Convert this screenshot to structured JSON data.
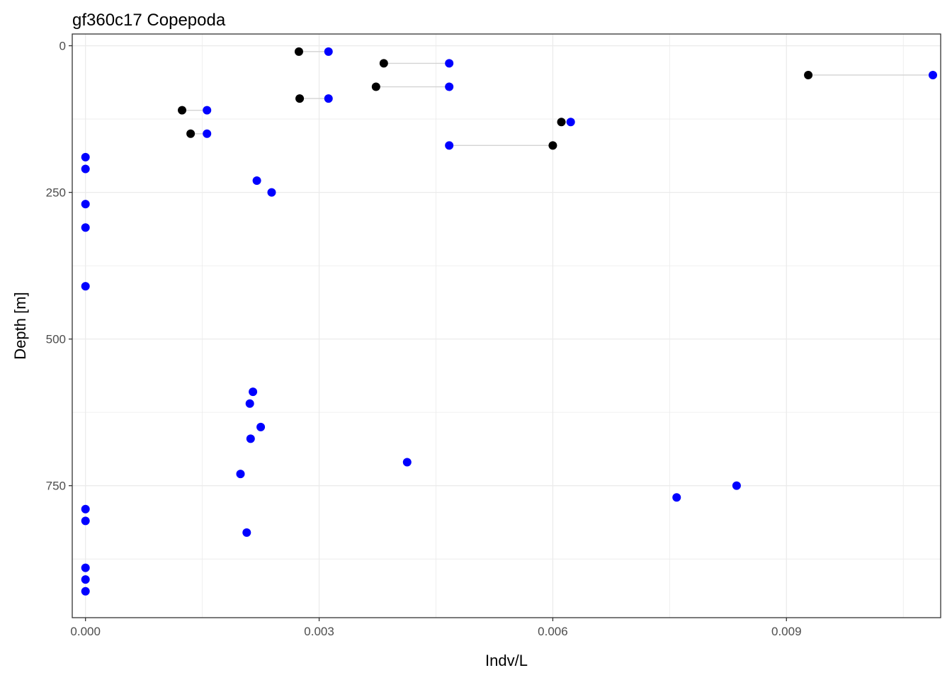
{
  "chart_data": {
    "type": "scatter",
    "title": "gf360c17 Copepoda",
    "xlabel": "Indv/L",
    "ylabel": "Depth [m]",
    "xlim": [
      -0.00017,
      0.01098
    ],
    "ylim": [
      -20,
      975
    ],
    "y_reversed": true,
    "x_ticks": [
      0.0,
      0.003,
      0.006,
      0.009
    ],
    "x_tick_labels": [
      "0.000",
      "0.003",
      "0.006",
      "0.009"
    ],
    "y_ticks": [
      0,
      250,
      500,
      750
    ],
    "y_tick_labels": [
      "0",
      "250",
      "500",
      "750"
    ],
    "grid": true,
    "legend": "none",
    "colors": {
      "black_points": "#000000",
      "blue_points": "#0000ff",
      "segments": "#d3d3d3",
      "grid": "#ebebeb",
      "panel_border": "#333333"
    },
    "segments": [
      {
        "depth": 10,
        "x1": 0.00274,
        "x2": 0.00312
      },
      {
        "depth": 30,
        "x1": 0.00383,
        "x2": 0.00467
      },
      {
        "depth": 50,
        "x1": 0.00928,
        "x2": 0.01088
      },
      {
        "depth": 70,
        "x1": 0.00373,
        "x2": 0.00467
      },
      {
        "depth": 90,
        "x1": 0.00275,
        "x2": 0.00312
      },
      {
        "depth": 110,
        "x1": 0.00124,
        "x2": 0.00156
      },
      {
        "depth": 130,
        "x1": 0.00611,
        "x2": 0.00623
      },
      {
        "depth": 150,
        "x1": 0.00135,
        "x2": 0.00156
      },
      {
        "depth": 170,
        "x1": 0.00467,
        "x2": 0.006
      }
    ],
    "series": [
      {
        "color": "#000000",
        "points": [
          {
            "x": 0.00274,
            "y": 10
          },
          {
            "x": 0.00383,
            "y": 30
          },
          {
            "x": 0.00928,
            "y": 50
          },
          {
            "x": 0.00373,
            "y": 70
          },
          {
            "x": 0.00275,
            "y": 90
          },
          {
            "x": 0.00124,
            "y": 110
          },
          {
            "x": 0.00611,
            "y": 130
          },
          {
            "x": 0.00135,
            "y": 150
          },
          {
            "x": 0.006,
            "y": 170
          }
        ]
      },
      {
        "color": "#0000ff",
        "points": [
          {
            "x": 0.00312,
            "y": 10
          },
          {
            "x": 0.00467,
            "y": 30
          },
          {
            "x": 0.01088,
            "y": 50
          },
          {
            "x": 0.00467,
            "y": 70
          },
          {
            "x": 0.00312,
            "y": 90
          },
          {
            "x": 0.00156,
            "y": 110
          },
          {
            "x": 0.00623,
            "y": 130
          },
          {
            "x": 0.00156,
            "y": 150
          },
          {
            "x": 0.00467,
            "y": 170
          },
          {
            "x": 0.0,
            "y": 190
          },
          {
            "x": 0.0,
            "y": 210
          },
          {
            "x": 0.0022,
            "y": 230
          },
          {
            "x": 0.00239,
            "y": 250
          },
          {
            "x": 0.0,
            "y": 270
          },
          {
            "x": 0.0,
            "y": 310
          },
          {
            "x": 0.0,
            "y": 410
          },
          {
            "x": 0.00215,
            "y": 590
          },
          {
            "x": 0.00211,
            "y": 610
          },
          {
            "x": 0.00225,
            "y": 650
          },
          {
            "x": 0.00212,
            "y": 670
          },
          {
            "x": 0.00413,
            "y": 710
          },
          {
            "x": 0.00199,
            "y": 730
          },
          {
            "x": 0.00836,
            "y": 750
          },
          {
            "x": 0.00759,
            "y": 770
          },
          {
            "x": 0.0,
            "y": 790
          },
          {
            "x": 0.0,
            "y": 810
          },
          {
            "x": 0.00207,
            "y": 830
          },
          {
            "x": 0.0,
            "y": 890
          },
          {
            "x": 0.0,
            "y": 910
          },
          {
            "x": 0.0,
            "y": 930
          }
        ]
      }
    ]
  }
}
